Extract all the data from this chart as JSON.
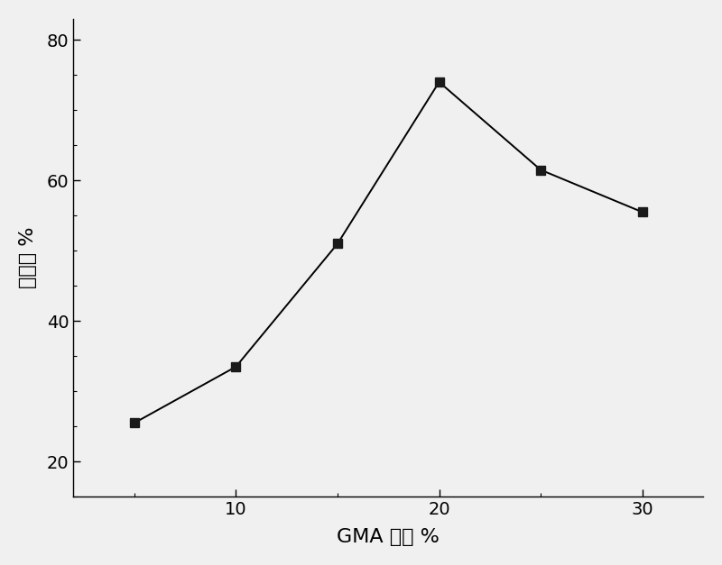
{
  "x": [
    5,
    10,
    15,
    20,
    25,
    30
  ],
  "y": [
    25.5,
    33.5,
    51.0,
    74.0,
    61.5,
    55.5
  ],
  "xlabel": "GMA 浓度 %",
  "ylabel": "接枝率 %",
  "xlim": [
    2,
    33
  ],
  "ylim": [
    15,
    83
  ],
  "yticks": [
    20,
    40,
    60,
    80
  ],
  "xticks": [
    10,
    20,
    30
  ],
  "line_color": "#000000",
  "marker": "s",
  "marker_color": "#1a1a1a",
  "marker_size": 7,
  "linewidth": 1.4,
  "background_color": "#f0f0f0",
  "label_fontsize": 16
}
